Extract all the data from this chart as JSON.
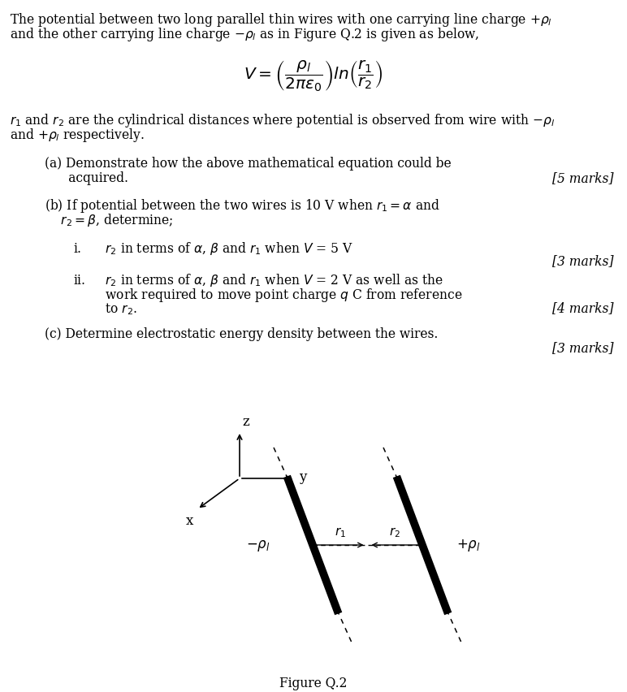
{
  "bg_color": "#ffffff",
  "text_color": "#000000",
  "fig_width": 7.72,
  "fig_height": 8.53,
  "intro_line1": "The potential between two long parallel thin wires with one carrying line charge $+\\rho_l$",
  "intro_line2": "and the other carrying line charge $-\\rho_l$ as in Figure Q.2 is given as below,",
  "formula": "$V = \\left(\\dfrac{\\rho_l}{2\\pi\\varepsilon_0}\\right) ln\\left(\\dfrac{r_1}{r_2}\\right)$",
  "desc_line1": "$r_1$ and $r_2$ are the cylindrical distances where potential is observed from wire with $-\\rho_l$",
  "desc_line2": "and $+\\rho_l$ respectively.",
  "qa_line1": "(a) Demonstrate how the above mathematical equation could be",
  "qa_line2": "      acquired.",
  "qa_marks": "[5 marks]",
  "qb_line1": "(b) If potential between the two wires is 10 V when $r_1 = \\alpha$ and",
  "qb_line2": "    $r_2 = \\beta$, determine;",
  "qi_text": "i.      $r_2$ in terms of $\\alpha$, $\\beta$ and $r_1$ when $V$ = 5 V",
  "qi_marks": "[3 marks]",
  "qii_line1": "ii.     $r_2$ in terms of $\\alpha$, $\\beta$ and $r_1$ when $V$ = 2 V as well as the",
  "qii_line2": "        work required to move point charge $q$ C from reference",
  "qii_line3": "        to $r_2$.",
  "qii_marks": "[4 marks]",
  "qc_text": "(c) Determine electrostatic energy density between the wires.",
  "qc_marks": "[3 marks]",
  "figure_caption": "Figure Q.2"
}
